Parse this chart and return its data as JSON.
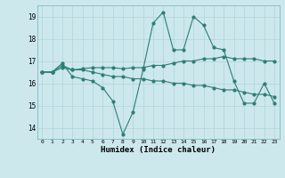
{
  "title": "",
  "xlabel": "Humidex (Indice chaleur)",
  "ylabel": "",
  "background_color": "#cce8ec",
  "grid_color": "#b0d4d8",
  "line_color": "#2e7d74",
  "xlim": [
    -0.5,
    23.5
  ],
  "ylim": [
    13.5,
    19.5
  ],
  "yticks": [
    14,
    15,
    16,
    17,
    18,
    19
  ],
  "xticks": [
    0,
    1,
    2,
    3,
    4,
    5,
    6,
    7,
    8,
    9,
    10,
    11,
    12,
    13,
    14,
    15,
    16,
    17,
    18,
    19,
    20,
    21,
    22,
    23
  ],
  "series": [
    [
      16.5,
      16.5,
      16.9,
      16.3,
      16.2,
      16.1,
      15.8,
      15.2,
      13.7,
      14.7,
      16.6,
      18.7,
      19.2,
      17.5,
      17.5,
      19.0,
      18.6,
      17.6,
      17.5,
      16.1,
      15.1,
      15.1,
      16.0,
      15.1
    ],
    [
      16.5,
      16.5,
      16.8,
      16.6,
      16.65,
      16.7,
      16.7,
      16.7,
      16.65,
      16.7,
      16.7,
      16.8,
      16.8,
      16.9,
      17.0,
      17.0,
      17.1,
      17.1,
      17.2,
      17.1,
      17.1,
      17.1,
      17.0,
      17.0
    ],
    [
      16.5,
      16.5,
      16.7,
      16.6,
      16.6,
      16.5,
      16.4,
      16.3,
      16.3,
      16.2,
      16.2,
      16.1,
      16.1,
      16.0,
      16.0,
      15.9,
      15.9,
      15.8,
      15.7,
      15.7,
      15.6,
      15.5,
      15.5,
      15.4
    ]
  ]
}
